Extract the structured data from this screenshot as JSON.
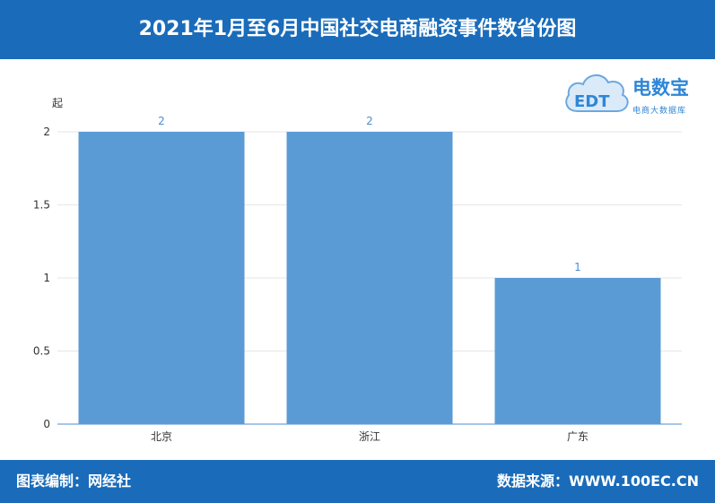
{
  "header": {
    "title": "2021年1月至6月中国社交电商融资事件数省份图"
  },
  "logo": {
    "name": "电数宝",
    "subtitle": "电商大数据库",
    "mark": "EDT"
  },
  "footer": {
    "left_text": "图表编制：网经社",
    "right_text": "数据来源：WWW.100EC.CN"
  },
  "colors": {
    "header": "#1a6cba",
    "bar": "#5b9bd5",
    "label": "#4a8fd1"
  },
  "chart_data": {
    "type": "bar",
    "title": "2021年1月至6月中国社交电商融资事件数省份图",
    "xlabel": "",
    "ylabel": "起",
    "categories": [
      "北京",
      "浙江",
      "广东"
    ],
    "values": [
      2,
      2,
      1
    ],
    "ylim": [
      0,
      2
    ],
    "yticks": [
      "0",
      "0.5",
      "1",
      "1.5",
      "2"
    ],
    "grid": true
  }
}
